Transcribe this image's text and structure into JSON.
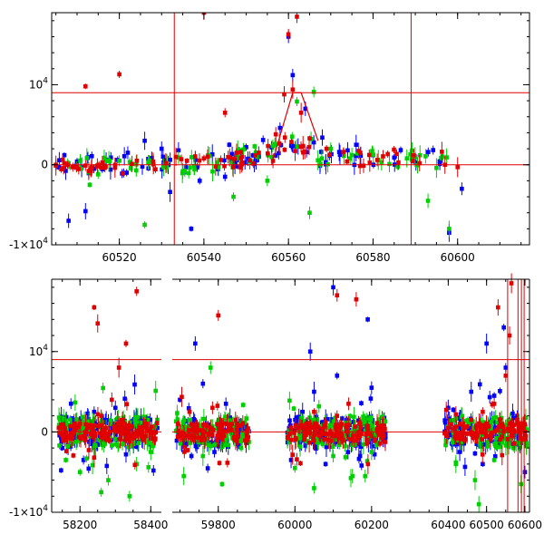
{
  "chart_data": [
    {
      "type": "scatter",
      "title": "",
      "xlabel": "",
      "ylabel": "",
      "xlim": [
        60504,
        60617
      ],
      "ylim": [
        -10000,
        19000
      ],
      "xticks": [
        60520,
        60540,
        60560,
        60580,
        60600
      ],
      "yticks": [
        {
          "value": 10000,
          "label": "10",
          "sup": "4"
        },
        {
          "value": 0,
          "label": "0",
          "sup": ""
        },
        {
          "value": -10000,
          "label": "-1×10",
          "sup": "4"
        }
      ],
      "hlines": [
        0,
        9000
      ],
      "vlines": [
        60533,
        60589
      ],
      "model_line": {
        "color": "#e00000",
        "x": [
          60556,
          60561,
          60563,
          60567
        ],
        "y": [
          0,
          9000,
          9000,
          3000
        ]
      },
      "series": [
        {
          "color": "#0000ff",
          "x": [
            60507,
            60510,
            60514,
            60518,
            60522,
            60530,
            60534,
            60538,
            60542,
            60546,
            60550,
            60554,
            60558,
            60561,
            60564,
            60568,
            60572,
            60576,
            60580,
            60585,
            60590,
            60596,
            60601,
            60508,
            60512,
            60526,
            60532,
            60537,
            60539,
            60545,
            60553,
            60560,
            60566,
            60574,
            60598
          ],
          "y": [
            1200,
            400,
            -500,
            900,
            1500,
            2000,
            1800,
            600,
            1300,
            2500,
            2200,
            3100,
            4600,
            11200,
            7000,
            3400,
            1600,
            2500,
            1200,
            900,
            1000,
            500,
            -3000,
            -7000,
            -5800,
            3000,
            -3400,
            -8000,
            -2000,
            -1500,
            1000,
            16000,
            2800,
            1800,
            -8500
          ]
        },
        {
          "color": "#00d000",
          "x": [
            60508,
            60511,
            60515,
            60520,
            60524,
            60527,
            60535,
            60541,
            60548,
            60552,
            60557,
            60562,
            60566,
            60570,
            60575,
            60582,
            60588,
            60595,
            60513,
            60526,
            60547,
            60555,
            60565,
            60593,
            60598
          ],
          "y": [
            200,
            -500,
            -1200,
            500,
            -700,
            300,
            -800,
            1200,
            1800,
            2300,
            2600,
            7900,
            9100,
            2000,
            1200,
            300,
            800,
            -400,
            -2500,
            -7500,
            -4000,
            -2000,
            -6000,
            -4500,
            -8000
          ]
        },
        {
          "color": "#e00000",
          "x": [
            60505,
            60507,
            60509,
            60512,
            60516,
            60519,
            60523,
            60528,
            60531,
            60536,
            60540,
            60544,
            60549,
            60553,
            60557,
            60559,
            60561,
            60563,
            60565,
            60569,
            60573,
            60577,
            60581,
            60586,
            60591,
            60597,
            60600,
            60512,
            60520,
            60545,
            60560,
            60562,
            60540
          ],
          "y": [
            0,
            200,
            -300,
            -100,
            300,
            0,
            100,
            400,
            200,
            500,
            800,
            600,
            1000,
            1500,
            3800,
            8800,
            9400,
            6500,
            3300,
            2000,
            1600,
            1500,
            600,
            300,
            200,
            0,
            -300,
            9800,
            11300,
            6500,
            16300,
            18500,
            19000
          ]
        }
      ]
    },
    {
      "type": "scatter",
      "title": "",
      "xlabel": "",
      "ylabel": "",
      "ylim": [
        -10000,
        19000
      ],
      "xticks": [
        58200,
        58400,
        59800,
        60000,
        60200,
        60400,
        60500,
        60600
      ],
      "yticks": [
        {
          "value": 10000,
          "label": "10",
          "sup": "4"
        },
        {
          "value": 0,
          "label": "0",
          "sup": ""
        },
        {
          "value": -10000,
          "label": "-1×10",
          "sup": "4"
        }
      ],
      "hlines": [
        0,
        9000
      ],
      "vlines": [
        60555,
        60582,
        60591,
        60598
      ],
      "segments": [
        {
          "xlim": [
            58120,
            58430
          ],
          "groups": [
            [
              58140,
              58420
            ]
          ]
        },
        {
          "xlim": [
            59680,
            60612
          ],
          "groups": [
            [
              59690,
              59880
            ],
            [
              59980,
              60240
            ],
            [
              60390,
              60605
            ]
          ]
        }
      ],
      "series": [
        {
          "color": "#0000ff",
          "x": [
            58150,
            58180,
            58210,
            58240,
            58270,
            58300,
            58330,
            58360,
            58390,
            59700,
            59730,
            59760,
            59790,
            59820,
            59850,
            59990,
            60020,
            60050,
            60080,
            60110,
            60140,
            60170,
            60200,
            60230,
            60400,
            60430,
            60460,
            60490,
            60520,
            60550,
            60580,
            60600,
            59740,
            60100,
            60040,
            60500,
            60190,
            60545
          ],
          "y": [
            -2000,
            1500,
            -3500,
            2500,
            -1200,
            3000,
            -2800,
            1800,
            -500,
            4000,
            -3000,
            6000,
            -2500,
            3500,
            -1500,
            -3500,
            2500,
            5000,
            -4000,
            7000,
            1500,
            -3000,
            5500,
            -1000,
            3000,
            -2500,
            5000,
            -4000,
            4500,
            8000,
            2000,
            -5000,
            11000,
            18000,
            10000,
            11000,
            14000,
            13000
          ]
        },
        {
          "color": "#00d000",
          "x": [
            58160,
            58200,
            58240,
            58280,
            58320,
            58360,
            58400,
            59710,
            59760,
            59810,
            59860,
            60000,
            60050,
            60100,
            60150,
            60200,
            60420,
            60470,
            60520,
            60570,
            58260,
            58340,
            59780,
            60080,
            60480,
            60590
          ],
          "y": [
            -3500,
            -5000,
            -2000,
            -6000,
            -1500,
            -4000,
            -2500,
            -5500,
            -3000,
            -6500,
            -2000,
            -4500,
            -7000,
            -3000,
            -5500,
            -2500,
            -4000,
            -6000,
            -3500,
            -2000,
            -7500,
            -8000,
            8000,
            1000,
            -9000,
            -6500
          ]
        },
        {
          "color": "#e00000",
          "x": [
            58140,
            58170,
            58200,
            58230,
            58260,
            58290,
            58320,
            58350,
            58380,
            58410,
            59695,
            59725,
            59755,
            59785,
            59815,
            59845,
            59875,
            59990,
            60020,
            60050,
            60080,
            60110,
            60140,
            60170,
            60200,
            60230,
            60400,
            60430,
            60460,
            60490,
            60520,
            60550,
            60580,
            60600,
            58250,
            58310,
            58240,
            58330,
            58360,
            59800,
            60110,
            60160,
            60530,
            60560,
            60565
          ],
          "y": [
            500,
            -500,
            1000,
            -300,
            2000,
            4000,
            1500,
            -800,
            600,
            0,
            1000,
            2500,
            -1000,
            3000,
            -500,
            1500,
            0,
            -1000,
            800,
            2500,
            1200,
            2000,
            3500,
            1000,
            -500,
            800,
            500,
            1000,
            1500,
            2500,
            3500,
            7000,
            1500,
            0,
            13500,
            8000,
            15500,
            11000,
            17500,
            14500,
            17000,
            16500,
            15500,
            12000,
            18500
          ]
        }
      ]
    }
  ]
}
